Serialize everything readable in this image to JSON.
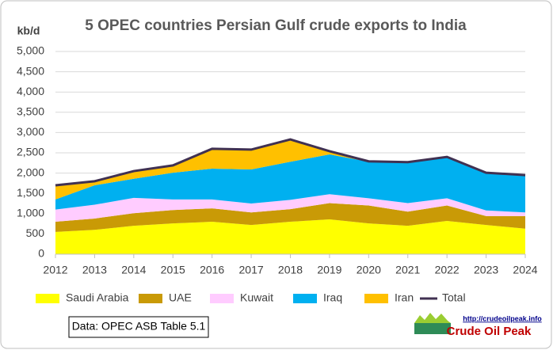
{
  "chart_data": {
    "type": "stacked_area",
    "title": "5 OPEC countries Persian Gulf crude exports to India",
    "y_label": "kb/d",
    "categories": [
      "2012",
      "2013",
      "2014",
      "2015",
      "2016",
      "2017",
      "2018",
      "2019",
      "2020",
      "2021",
      "2022",
      "2023",
      "2024"
    ],
    "series": [
      {
        "name": "Saudi Arabia",
        "color": "#ffff00",
        "kind": "area",
        "values": [
          550,
          600,
          700,
          760,
          800,
          720,
          800,
          860,
          760,
          700,
          820,
          720,
          630
        ]
      },
      {
        "name": "UAE",
        "color": "#c99a06",
        "kind": "area",
        "values": [
          250,
          280,
          310,
          330,
          330,
          310,
          310,
          400,
          440,
          350,
          380,
          220,
          310
        ]
      },
      {
        "name": "Kuwait",
        "color": "#ffccff",
        "kind": "area",
        "values": [
          300,
          340,
          380,
          260,
          220,
          220,
          230,
          220,
          180,
          210,
          180,
          140,
          90
        ]
      },
      {
        "name": "Iraq",
        "color": "#00b0f0",
        "kind": "area",
        "values": [
          250,
          480,
          470,
          660,
          760,
          840,
          940,
          980,
          900,
          1000,
          1000,
          930,
          920
        ]
      },
      {
        "name": "Iran",
        "color": "#ffc000",
        "kind": "area",
        "values": [
          350,
          100,
          190,
          180,
          490,
          490,
          550,
          80,
          10,
          10,
          20,
          0,
          0
        ]
      },
      {
        "name": "Total",
        "color": "#403152",
        "kind": "line",
        "values": [
          1700,
          1800,
          2050,
          2190,
          2600,
          2580,
          2830,
          2540,
          2290,
          2270,
          2400,
          2010,
          1950
        ]
      }
    ],
    "ylim": [
      0,
      5000
    ],
    "yticks": [
      0,
      500,
      {
        "value": 1000,
        "label": "1,000"
      },
      {
        "value": 1500,
        "label": "1,500"
      },
      {
        "value": 2000,
        "label": "2,000"
      },
      {
        "value": 2500,
        "label": "2,500"
      },
      {
        "value": 3000,
        "label": "3,000"
      },
      {
        "value": 3500,
        "label": "3,500"
      },
      {
        "value": 4000,
        "label": "4,000"
      },
      {
        "value": 4500,
        "label": "4,500"
      },
      {
        "value": 5000,
        "label": "5,000"
      }
    ],
    "grid": true,
    "legend": "bottom",
    "source_note": "Data: OPEC ASB Table 5.1",
    "logo_url": "http://crudeoilpeak.info",
    "logo_name": "Crude Oil Peak"
  }
}
